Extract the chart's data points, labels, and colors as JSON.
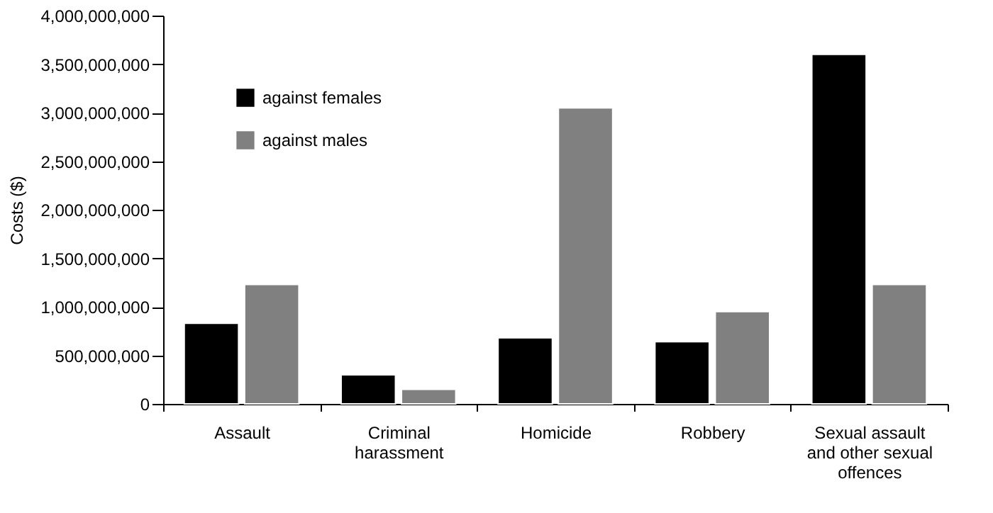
{
  "chart_data": {
    "type": "bar",
    "ylabel": "Costs ($)",
    "categories": [
      "Assault",
      "Criminal\nharassment",
      "Homicide",
      "Robbery",
      "Sexual assault\nand other sexual\noffences"
    ],
    "series": [
      {
        "name": "against females",
        "color": "#000000",
        "values": [
          830000000,
          300000000,
          680000000,
          640000000,
          3600000000
        ]
      },
      {
        "name": "against males",
        "color": "#808080",
        "values": [
          1230000000,
          150000000,
          3050000000,
          950000000,
          1230000000
        ]
      }
    ],
    "ylim": [
      0,
      4000000000
    ],
    "yticks": [
      {
        "value": 0,
        "label": "0"
      },
      {
        "value": 500000000,
        "label": "500,000,000"
      },
      {
        "value": 1000000000,
        "label": "1,000,000,000"
      },
      {
        "value": 1500000000,
        "label": "1,500,000,000"
      },
      {
        "value": 2000000000,
        "label": "2,000,000,000"
      },
      {
        "value": 2500000000,
        "label": "2,500,000,000"
      },
      {
        "value": 3000000000,
        "label": "3,000,000,000"
      },
      {
        "value": 3500000000,
        "label": "3,500,000,000"
      },
      {
        "value": 4000000000,
        "label": "4,000,000,000"
      }
    ],
    "grid": false,
    "legend": "top left"
  }
}
